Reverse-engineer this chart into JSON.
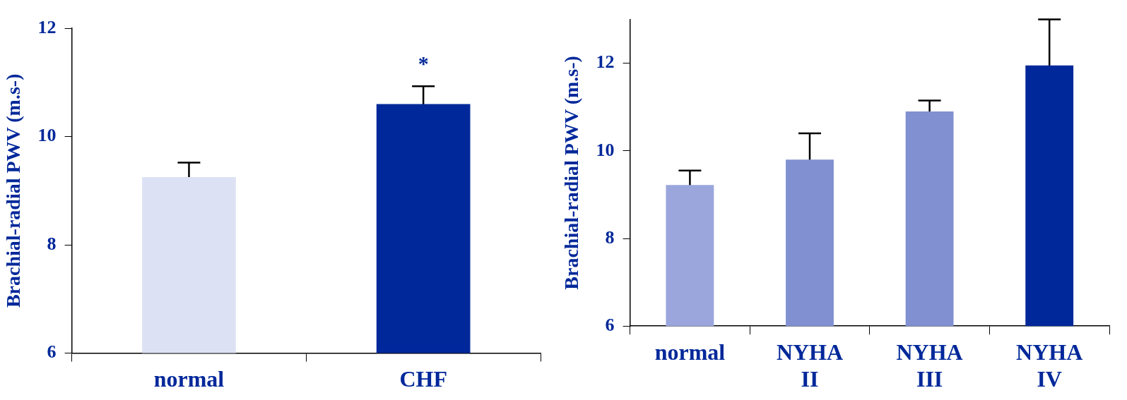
{
  "chart_data": [
    {
      "type": "bar",
      "ylabel": "Brachial-radial PWV (m.s-)",
      "categories": [
        "normal",
        "CHF"
      ],
      "values": [
        9.25,
        10.6
      ],
      "errors": [
        0.27,
        0.33
      ],
      "colors": [
        "#dce2f4",
        "#00289a"
      ],
      "ylim": [
        6,
        12
      ],
      "yticks": [
        6,
        8,
        10,
        12
      ],
      "annotations": [
        "*"
      ]
    },
    {
      "type": "bar",
      "ylabel": "Brachial-radial PWV (m.s-)",
      "categories": [
        "normal",
        "NYHA II",
        "NYHA III",
        "NYHA IV"
      ],
      "values": [
        9.22,
        9.8,
        10.9,
        11.95
      ],
      "errors": [
        0.33,
        0.6,
        0.25,
        1.05
      ],
      "colors": [
        "#9aa6dc",
        "#8090d0",
        "#8090d0",
        "#00289a"
      ],
      "ylim": [
        6,
        13
      ],
      "yticks": [
        6,
        8,
        10,
        12
      ]
    }
  ]
}
